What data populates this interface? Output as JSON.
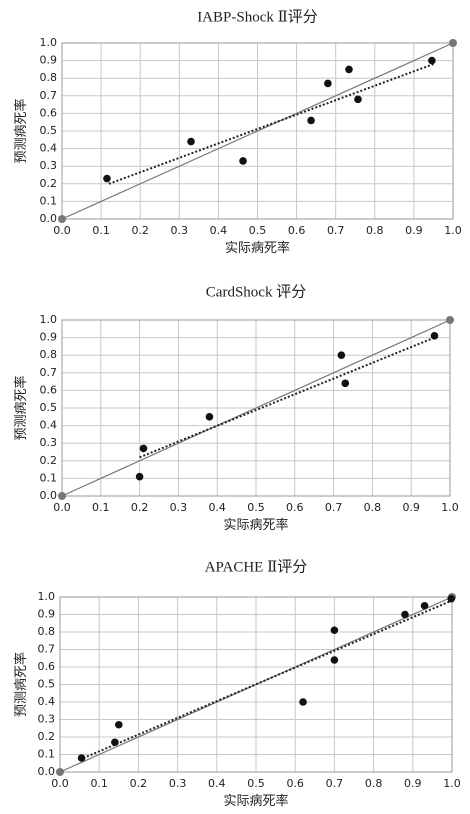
{
  "chart_data": [
    {
      "type": "scatter",
      "title": "IABP-Shock Ⅱ评分",
      "x_label": "实际病死率",
      "y_label": "预测病死率",
      "xlim": [
        0,
        1
      ],
      "ylim": [
        0,
        1
      ],
      "xticks": [
        {
          "value": 0,
          "label": "0.0"
        },
        0.1,
        0.2,
        0.3,
        0.4,
        0.5,
        0.6,
        0.7,
        0.8,
        0.9,
        {
          "value": 1,
          "label": "1.0"
        }
      ],
      "yticks": [
        {
          "value": 0,
          "label": "0.0"
        },
        0.1,
        0.2,
        0.3,
        0.4,
        0.5,
        0.6,
        0.7,
        0.8,
        0.9,
        {
          "value": 1,
          "label": "1.0"
        }
      ],
      "grid": true,
      "series": [
        {
          "color": "#111111",
          "x": [
            0.115,
            0.33,
            0.463,
            0.637,
            0.68,
            0.734,
            0.757,
            0.946
          ],
          "values": [
            0.23,
            0.44,
            0.33,
            0.56,
            0.77,
            0.85,
            0.68,
            0.9
          ]
        }
      ],
      "reference": {
        "color": "#777777",
        "x": [
          0,
          1
        ],
        "values": [
          0,
          1
        ]
      },
      "fit_line": {
        "color": "#222222",
        "x": [
          0.12,
          0.95
        ],
        "values": [
          0.2,
          0.88
        ]
      }
    },
    {
      "type": "scatter",
      "title": "CardShock 评分",
      "x_label": "实际病死率",
      "y_label": "预测病死率",
      "xlim": [
        0,
        1
      ],
      "ylim": [
        0,
        1
      ],
      "xticks": [
        {
          "value": 0,
          "label": "0.0"
        },
        0.1,
        0.2,
        0.3,
        0.4,
        0.5,
        0.6,
        0.7,
        0.8,
        0.9,
        {
          "value": 1,
          "label": "1.0"
        }
      ],
      "yticks": [
        {
          "value": 0,
          "label": "0.0"
        },
        0.1,
        0.2,
        0.3,
        0.4,
        0.5,
        0.6,
        0.7,
        0.8,
        0.9,
        {
          "value": 1,
          "label": "1.0"
        }
      ],
      "grid": true,
      "series": [
        {
          "color": "#111111",
          "x": [
            0.2,
            0.21,
            0.38,
            0.72,
            0.73,
            0.96
          ],
          "values": [
            0.11,
            0.27,
            0.45,
            0.8,
            0.64,
            0.91
          ]
        }
      ],
      "reference": {
        "color": "#777777",
        "x": [
          0,
          1
        ],
        "values": [
          0,
          1
        ]
      },
      "fit_line": {
        "color": "#222222",
        "x": [
          0.2,
          0.96
        ],
        "values": [
          0.22,
          0.9
        ]
      }
    },
    {
      "type": "scatter",
      "title": "APACHE Ⅱ评分",
      "x_label": "实际病死率",
      "y_label": "预测病死率",
      "xlim": [
        0,
        1
      ],
      "ylim": [
        0,
        1
      ],
      "xticks": [
        {
          "value": 0,
          "label": "0.0"
        },
        0.1,
        0.2,
        0.3,
        0.4,
        0.5,
        0.6,
        0.7,
        0.8,
        0.9,
        {
          "value": 1,
          "label": "1.0"
        }
      ],
      "yticks": [
        {
          "value": 0,
          "label": "0.0"
        },
        0.1,
        0.2,
        0.3,
        0.4,
        0.5,
        0.6,
        0.7,
        0.8,
        0.9,
        {
          "value": 1,
          "label": "1.0"
        }
      ],
      "grid": true,
      "series": [
        {
          "color": "#111111",
          "x": [
            0.055,
            0.14,
            0.15,
            0.62,
            0.7,
            0.7,
            0.88,
            0.93,
            0.998
          ],
          "values": [
            0.08,
            0.17,
            0.27,
            0.4,
            0.81,
            0.64,
            0.9,
            0.95,
            0.99
          ]
        }
      ],
      "reference": {
        "color": "#777777",
        "x": [
          0,
          1
        ],
        "values": [
          0,
          1
        ]
      },
      "fit_line": {
        "color": "#222222",
        "x": [
          0.05,
          1.0
        ],
        "values": [
          0.07,
          0.98
        ]
      }
    }
  ]
}
